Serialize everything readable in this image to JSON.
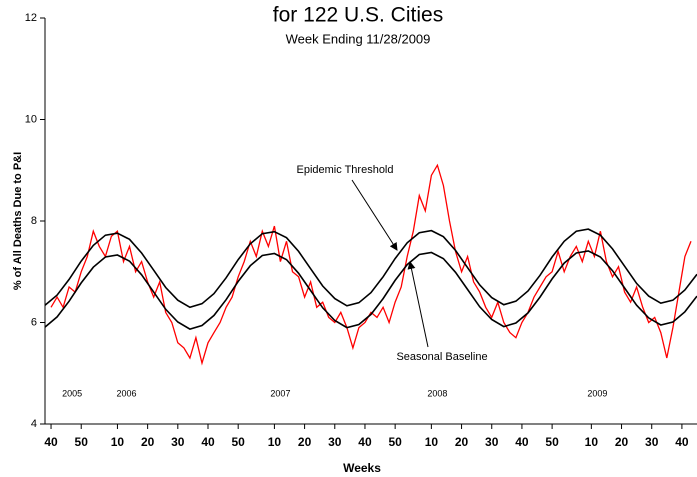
{
  "chart_data": {
    "type": "line",
    "title": "for 122 U.S. Cities",
    "subtitle": "Week Ending 11/28/2009",
    "y_label": "% of All Deaths Due to P&I",
    "x_label": "Weeks",
    "year_labels": [
      "2005",
      "2006",
      "2007",
      "2008",
      "2009"
    ],
    "xlim": [
      -2,
      214
    ],
    "ylim": [
      4,
      12
    ],
    "yticks": [
      4,
      6,
      8,
      10,
      12
    ],
    "xticks": [
      {
        "value": 0,
        "label": "40"
      },
      {
        "value": 10,
        "label": "50"
      },
      {
        "value": 22,
        "label": "10"
      },
      {
        "value": 32,
        "label": "20"
      },
      {
        "value": 42,
        "label": "30"
      },
      {
        "value": 52,
        "label": "40"
      },
      {
        "value": 62,
        "label": "50"
      },
      {
        "value": 74,
        "label": "10"
      },
      {
        "value": 84,
        "label": "20"
      },
      {
        "value": 94,
        "label": "30"
      },
      {
        "value": 104,
        "label": "40"
      },
      {
        "value": 114,
        "label": "50"
      },
      {
        "value": 126,
        "label": "10"
      },
      {
        "value": 136,
        "label": "20"
      },
      {
        "value": 146,
        "label": "30"
      },
      {
        "value": 156,
        "label": "40"
      },
      {
        "value": 166,
        "label": "50"
      },
      {
        "value": 179,
        "label": "10"
      },
      {
        "value": 189,
        "label": "20"
      },
      {
        "value": 199,
        "label": "30"
      },
      {
        "value": 209,
        "label": "40"
      }
    ],
    "series": [
      {
        "color": "#ff0000",
        "x": [
          0,
          2,
          4,
          6,
          8,
          10,
          12,
          14,
          16,
          18,
          20,
          22,
          24,
          26,
          28,
          30,
          32,
          34,
          36,
          38,
          40,
          42,
          44,
          46,
          48,
          50,
          52,
          54,
          56,
          58,
          60,
          62,
          64,
          66,
          68,
          70,
          72,
          74,
          76,
          78,
          80,
          82,
          84,
          86,
          88,
          90,
          92,
          94,
          96,
          98,
          100,
          102,
          104,
          106,
          108,
          110,
          112,
          114,
          116,
          118,
          120,
          122,
          124,
          126,
          128,
          130,
          132,
          134,
          136,
          138,
          140,
          142,
          144,
          146,
          148,
          150,
          152,
          154,
          156,
          158,
          160,
          162,
          164,
          166,
          168,
          170,
          172,
          174,
          176,
          178,
          180,
          182,
          184,
          186,
          188,
          190,
          192,
          194,
          196,
          198,
          200,
          202,
          204,
          206,
          208,
          210,
          212
        ],
        "values": [
          6.3,
          6.5,
          6.3,
          6.7,
          6.6,
          7.0,
          7.3,
          7.8,
          7.5,
          7.3,
          7.7,
          7.8,
          7.2,
          7.5,
          7.0,
          7.2,
          6.8,
          6.5,
          6.8,
          6.2,
          6.0,
          5.6,
          5.5,
          5.3,
          5.7,
          5.2,
          5.6,
          5.8,
          6.0,
          6.3,
          6.5,
          6.9,
          7.2,
          7.6,
          7.3,
          7.8,
          7.5,
          7.9,
          7.2,
          7.6,
          7.0,
          6.9,
          6.5,
          6.8,
          6.3,
          6.4,
          6.1,
          6.0,
          6.2,
          5.9,
          5.5,
          5.9,
          6.0,
          6.2,
          6.1,
          6.3,
          6.0,
          6.4,
          6.7,
          7.3,
          7.8,
          8.5,
          8.2,
          8.9,
          9.1,
          8.7,
          8.0,
          7.4,
          7.0,
          7.3,
          6.8,
          6.6,
          6.3,
          6.1,
          6.4,
          6.0,
          5.8,
          5.7,
          6.0,
          6.2,
          6.5,
          6.7,
          6.9,
          7.0,
          7.4,
          7.0,
          7.3,
          7.5,
          7.2,
          7.6,
          7.3,
          7.8,
          7.2,
          6.9,
          7.1,
          6.6,
          6.4,
          6.7,
          6.3,
          6.0,
          6.1,
          5.8,
          5.3,
          5.9,
          6.6,
          7.3,
          7.6
        ]
      },
      {
        "name": "Epidemic Threshold",
        "color": "#000000",
        "x": [
          -2,
          2,
          6,
          10,
          14,
          18,
          22,
          26,
          30,
          34,
          38,
          42,
          46,
          50,
          54,
          58,
          62,
          66,
          70,
          74,
          78,
          82,
          86,
          90,
          94,
          98,
          102,
          106,
          110,
          114,
          118,
          122,
          126,
          130,
          134,
          138,
          142,
          146,
          150,
          154,
          158,
          162,
          166,
          170,
          174,
          178,
          182,
          186,
          190,
          194,
          198,
          202,
          206,
          210,
          214
        ],
        "values": [
          6.34,
          6.54,
          6.85,
          7.21,
          7.52,
          7.72,
          7.76,
          7.64,
          7.37,
          7.03,
          6.69,
          6.44,
          6.3,
          6.37,
          6.57,
          6.88,
          7.24,
          7.55,
          7.75,
          7.79,
          7.67,
          7.4,
          7.06,
          6.72,
          6.47,
          6.33,
          6.39,
          6.59,
          6.9,
          7.26,
          7.57,
          7.77,
          7.81,
          7.69,
          7.42,
          7.08,
          6.74,
          6.49,
          6.35,
          6.42,
          6.62,
          6.93,
          7.29,
          7.6,
          7.8,
          7.84,
          7.72,
          7.45,
          7.11,
          6.77,
          6.52,
          6.38,
          6.44,
          6.64,
          6.95
        ]
      },
      {
        "name": "Seasonal Baseline",
        "color": "#000000",
        "x": [
          -2,
          2,
          6,
          10,
          14,
          18,
          22,
          26,
          30,
          34,
          38,
          42,
          46,
          50,
          54,
          58,
          62,
          66,
          70,
          74,
          78,
          82,
          86,
          90,
          94,
          98,
          102,
          106,
          110,
          114,
          118,
          122,
          126,
          130,
          134,
          138,
          142,
          146,
          150,
          154,
          158,
          162,
          166,
          170,
          174,
          178,
          182,
          186,
          190,
          194,
          198,
          202,
          206,
          210,
          214
        ],
        "values": [
          5.91,
          6.11,
          6.42,
          6.78,
          7.09,
          7.29,
          7.33,
          7.21,
          6.94,
          6.6,
          6.26,
          6.01,
          5.87,
          5.94,
          6.14,
          6.45,
          6.81,
          7.12,
          7.32,
          7.36,
          7.24,
          6.97,
          6.63,
          6.29,
          6.04,
          5.9,
          5.96,
          6.16,
          6.47,
          6.83,
          7.14,
          7.34,
          7.38,
          7.26,
          6.99,
          6.65,
          6.31,
          6.06,
          5.92,
          5.99,
          6.19,
          6.5,
          6.86,
          7.17,
          7.37,
          7.41,
          7.29,
          7.02,
          6.68,
          6.34,
          6.09,
          5.95,
          6.01,
          6.21,
          6.52
        ]
      }
    ]
  }
}
